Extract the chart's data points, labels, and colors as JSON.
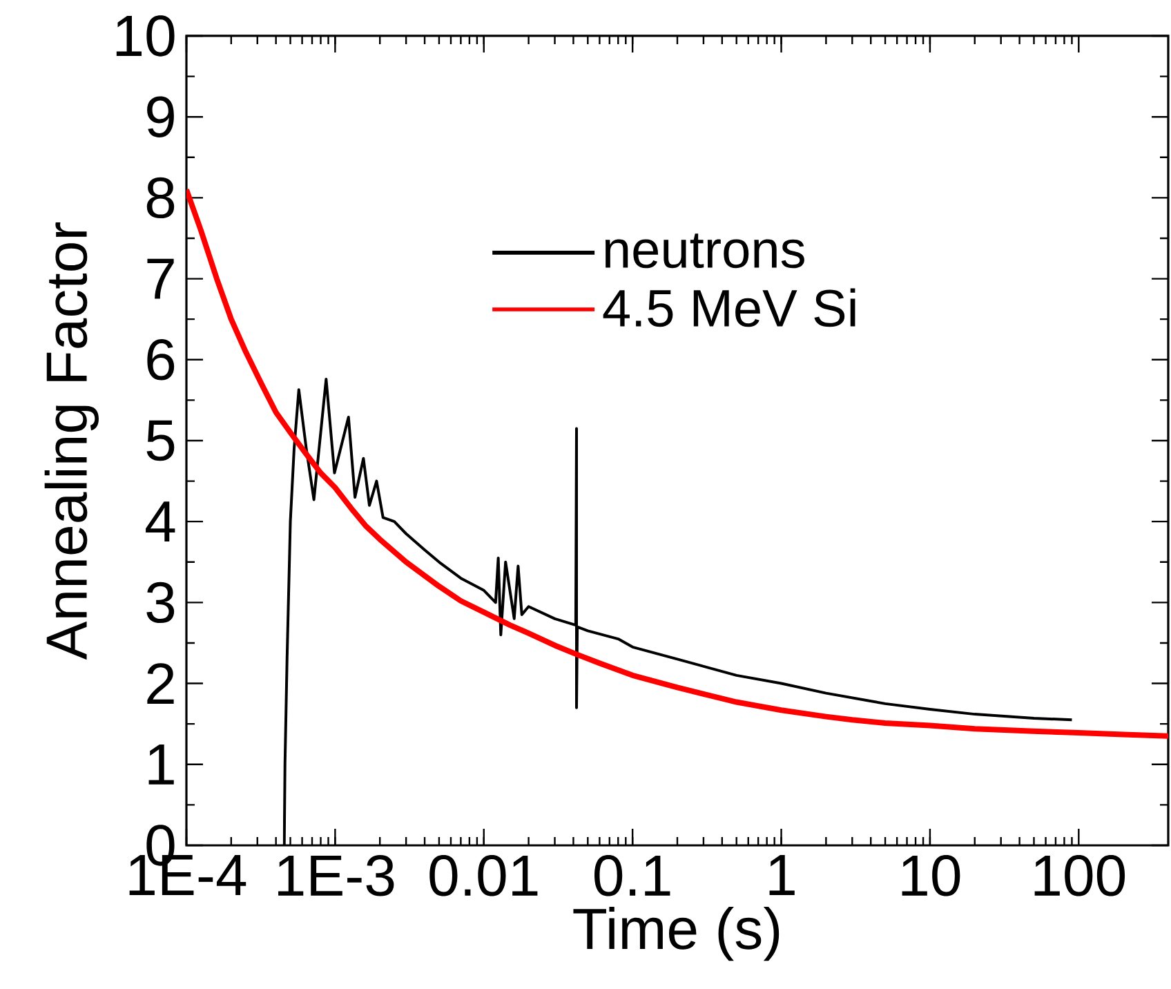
{
  "chart_data": {
    "type": "line",
    "xlabel": "Time (s)",
    "ylabel": "Annealing Factor",
    "log": "x",
    "xlim": [
      0.0001,
      400
    ],
    "ylim": [
      0,
      10
    ],
    "xticks": [
      {
        "value": 0.0001,
        "label": "1E-4"
      },
      {
        "value": 0.001,
        "label": "1E-3"
      },
      0.01,
      0.1,
      1,
      10,
      100
    ],
    "yticks": [
      0,
      1,
      2,
      3,
      4,
      5,
      6,
      7,
      8,
      9,
      10
    ],
    "legend": "top",
    "marker": "none",
    "line_style": "solid",
    "series": [
      {
        "name": "neutrons",
        "color": "#000000",
        "x": [
          0.000455,
          0.00046,
          0.000475,
          0.0005,
          0.00053,
          0.00057,
          0.00064,
          0.00072,
          0.00087,
          0.00099,
          0.00123,
          0.00136,
          0.00155,
          0.0017,
          0.0019,
          0.0021,
          0.0025,
          0.003,
          0.004,
          0.005,
          0.007,
          0.01,
          0.012,
          0.0125,
          0.013,
          0.014,
          0.016,
          0.017,
          0.018,
          0.02,
          0.03,
          0.0415,
          0.042,
          0.042,
          0.0425,
          0.05,
          0.08,
          0.1,
          0.2,
          0.5,
          1,
          2,
          5,
          10,
          20,
          50,
          90
        ],
        "values": [
          0,
          1.0,
          2.3,
          4.0,
          4.9,
          5.63,
          4.9,
          4.27,
          5.76,
          4.6,
          5.29,
          4.3,
          4.78,
          4.2,
          4.5,
          4.05,
          4.0,
          3.85,
          3.65,
          3.5,
          3.3,
          3.15,
          3.0,
          3.55,
          2.6,
          3.5,
          2.8,
          3.45,
          2.85,
          2.95,
          2.8,
          2.72,
          5.15,
          1.7,
          2.7,
          2.65,
          2.55,
          2.45,
          2.3,
          2.1,
          2.0,
          1.88,
          1.75,
          1.68,
          1.62,
          1.57,
          1.55
        ]
      },
      {
        "name": "4.5 MeV Si",
        "color": "#ff0000",
        "x": [
          0.0001,
          0.000125,
          0.00016,
          0.0002,
          0.00025,
          0.00032,
          0.0004,
          0.0005,
          0.00063,
          0.0008,
          0.001,
          0.0013,
          0.0016,
          0.002,
          0.003,
          0.005,
          0.007,
          0.01,
          0.015,
          0.02,
          0.03,
          0.042,
          0.06,
          0.1,
          0.2,
          0.3,
          0.5,
          1,
          2,
          3,
          5,
          10,
          20,
          50,
          100,
          200,
          400
        ],
        "values": [
          8.1,
          7.6,
          7.0,
          6.5,
          6.1,
          5.7,
          5.35,
          5.1,
          4.85,
          4.6,
          4.42,
          4.15,
          3.95,
          3.78,
          3.5,
          3.2,
          3.02,
          2.88,
          2.72,
          2.62,
          2.47,
          2.36,
          2.25,
          2.1,
          1.95,
          1.87,
          1.77,
          1.67,
          1.59,
          1.55,
          1.51,
          1.48,
          1.44,
          1.41,
          1.39,
          1.37,
          1.35
        ]
      }
    ]
  }
}
